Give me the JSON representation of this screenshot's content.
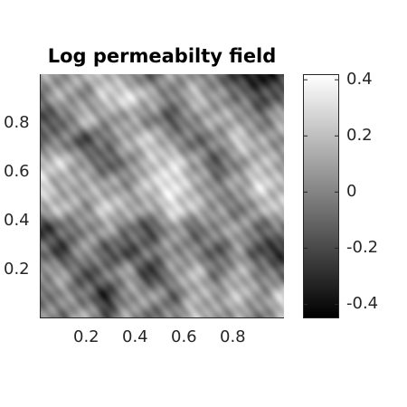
{
  "chart_data": {
    "type": "heatmap",
    "title": "Log permeabilty field",
    "xlabel": "",
    "ylabel": "",
    "xlim": [
      0,
      1
    ],
    "ylim": [
      0,
      1
    ],
    "x_ticks": [
      "0.2",
      "0.4",
      "0.6",
      "0.8"
    ],
    "y_ticks": [
      "0.2",
      "0.4",
      "0.6",
      "0.8"
    ],
    "colorbar": {
      "range": [
        -0.45,
        0.42
      ],
      "ticks": [
        "0.4",
        "0.2",
        "0",
        "-0.2",
        "-0.4"
      ],
      "colormap": "gray",
      "low_color": "#000000",
      "high_color": "#ffffff"
    },
    "grid": false,
    "field_grid": {
      "rows_top_to_bottom": [
        [
          0.1,
          0.05,
          0.15,
          0.2,
          0.05,
          -0.1,
          0.1,
          0.05,
          -0.05,
          -0.3,
          -0.38,
          -0.25
        ],
        [
          -0.05,
          0.15,
          0.0,
          0.25,
          0.3,
          0.15,
          -0.05,
          0.2,
          0.05,
          -0.05,
          -0.2,
          -0.1
        ],
        [
          -0.2,
          -0.1,
          0.2,
          0.05,
          0.1,
          0.0,
          -0.15,
          0.05,
          0.15,
          0.1,
          -0.05,
          0.15
        ],
        [
          -0.1,
          0.0,
          -0.2,
          -0.05,
          0.15,
          0.25,
          0.05,
          -0.1,
          0.0,
          0.25,
          0.1,
          0.05
        ],
        [
          0.2,
          0.25,
          0.05,
          -0.15,
          0.0,
          0.2,
          0.3,
          0.1,
          -0.15,
          0.05,
          0.2,
          0.1
        ],
        [
          0.3,
          0.1,
          0.15,
          0.1,
          0.05,
          0.25,
          0.35,
          0.15,
          0.0,
          0.1,
          0.3,
          0.15
        ],
        [
          0.15,
          0.2,
          0.05,
          0.25,
          0.15,
          0.1,
          0.3,
          0.2,
          0.05,
          -0.05,
          0.15,
          0.25
        ],
        [
          -0.3,
          -0.1,
          0.0,
          0.1,
          -0.05,
          -0.2,
          0.1,
          -0.1,
          0.05,
          0.1,
          -0.1,
          -0.05
        ],
        [
          -0.05,
          -0.25,
          0.1,
          -0.15,
          -0.2,
          -0.05,
          0.05,
          0.0,
          -0.15,
          0.05,
          -0.2,
          -0.3
        ],
        [
          0.05,
          0.1,
          -0.2,
          -0.05,
          0.1,
          -0.3,
          0.05,
          0.2,
          -0.05,
          0.15,
          0.0,
          -0.1
        ],
        [
          -0.1,
          0.05,
          -0.05,
          -0.3,
          0.05,
          0.1,
          -0.1,
          0.15,
          0.1,
          0.2,
          0.05,
          0.25
        ],
        [
          0.05,
          -0.05,
          0.15,
          -0.15,
          0.1,
          -0.1,
          0.0,
          0.2,
          0.05,
          0.1,
          -0.05,
          0.2
        ]
      ]
    }
  }
}
